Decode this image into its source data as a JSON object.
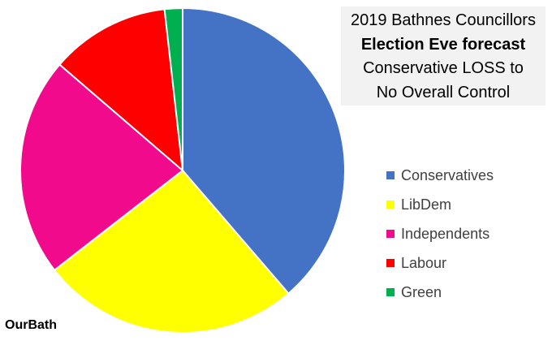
{
  "title": {
    "line1": "2019 Bathnes Councillors",
    "line2": "Election Eve forecast",
    "line3": "Conservative LOSS to",
    "line4": "No Overall Control"
  },
  "source_label": "OurBath",
  "chart_data": {
    "type": "pie",
    "categories": [
      "Conservatives",
      "LibDem",
      "Independents",
      "Labour",
      "Green"
    ],
    "values": [
      39,
      26,
      22,
      12,
      1.8
    ],
    "colors": [
      "#4472c4",
      "#ffff00",
      "#f20a8c",
      "#ff0000",
      "#00b050"
    ],
    "start_angle_deg": 0,
    "direction": "clockwise",
    "legend_position": "right"
  }
}
